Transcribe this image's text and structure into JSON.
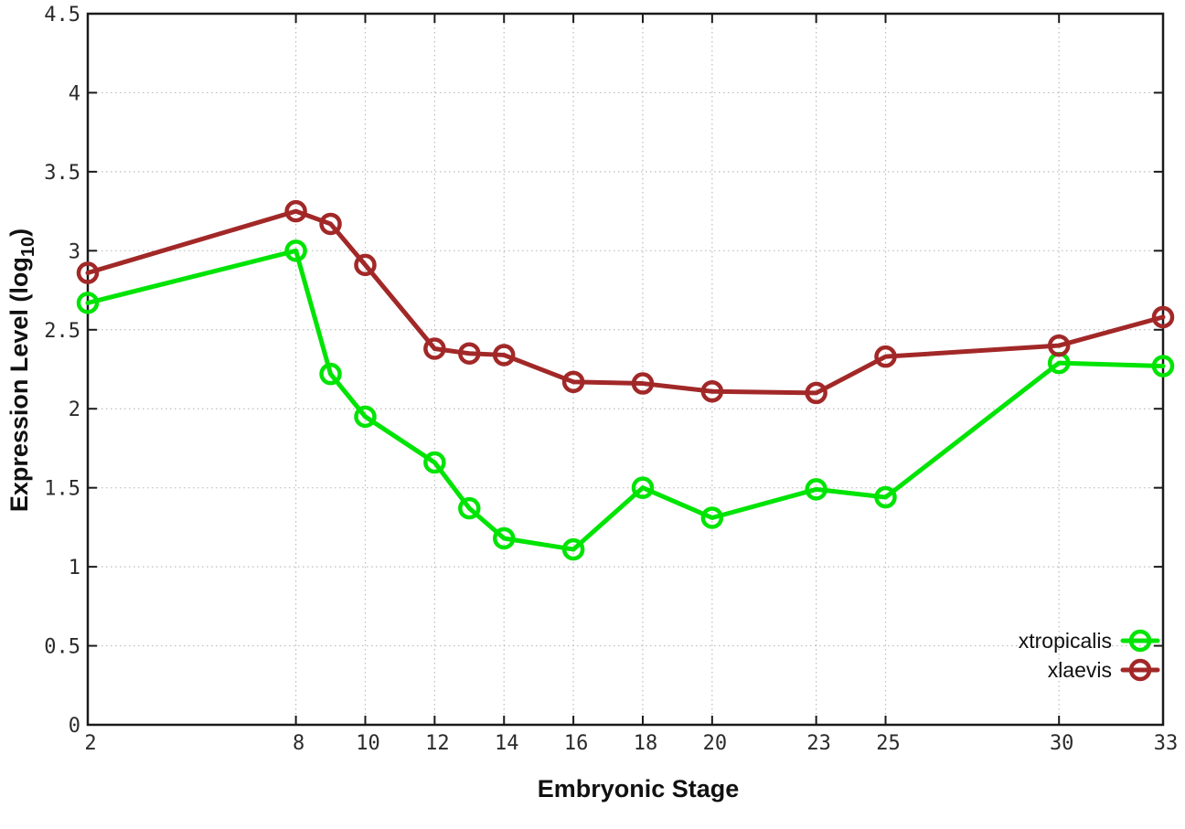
{
  "figure": {
    "background": "#ffffff",
    "axis_color": "#1a1a1a",
    "grid_color": "#bcbcbc",
    "tick_label_color": "#2b2b2b"
  },
  "chart_data": {
    "type": "line",
    "title": "",
    "xlabel": "Embryonic Stage",
    "ylabel": {
      "main": "Expression Level (log",
      "subscript": "10",
      "suffix": ")"
    },
    "x": [
      2,
      8,
      9,
      10,
      12,
      13,
      14,
      16,
      18,
      20,
      23,
      25,
      30,
      33
    ],
    "series": [
      {
        "name": "xtropicalis",
        "color": "#00e404",
        "marker": "open-circle",
        "values": [
          2.67,
          3.0,
          2.22,
          1.95,
          1.66,
          1.37,
          1.18,
          1.11,
          1.5,
          1.31,
          1.49,
          1.44,
          2.29,
          2.27
        ]
      },
      {
        "name": "xlaevis",
        "color": "#a22828",
        "marker": "open-circle",
        "values": [
          2.86,
          3.25,
          3.17,
          2.91,
          2.38,
          2.35,
          2.34,
          2.17,
          2.16,
          2.11,
          2.1,
          2.33,
          2.4,
          2.58
        ]
      }
    ],
    "xlim": [
      2,
      33
    ],
    "ylim": [
      0,
      4.5
    ],
    "xticks": {
      "values": [
        2,
        8,
        10,
        12,
        14,
        16,
        18,
        20,
        23,
        25,
        30,
        33
      ],
      "labels": [
        "2",
        "8",
        "10",
        "12",
        "14",
        "16",
        "18",
        "20",
        "23",
        "25",
        "30",
        "33"
      ]
    },
    "yticks": {
      "values": [
        0,
        0.5,
        1,
        1.5,
        2,
        2.5,
        3,
        3.5,
        4,
        4.5
      ],
      "labels": [
        "0",
        "0.5",
        "1",
        "1.5",
        "2",
        "2.5",
        "3",
        "3.5",
        "4",
        "4.5"
      ]
    },
    "grid": true,
    "legend": {
      "position": "inside-bottom-right",
      "entries": [
        "xtropicalis",
        "xlaevis"
      ]
    }
  }
}
